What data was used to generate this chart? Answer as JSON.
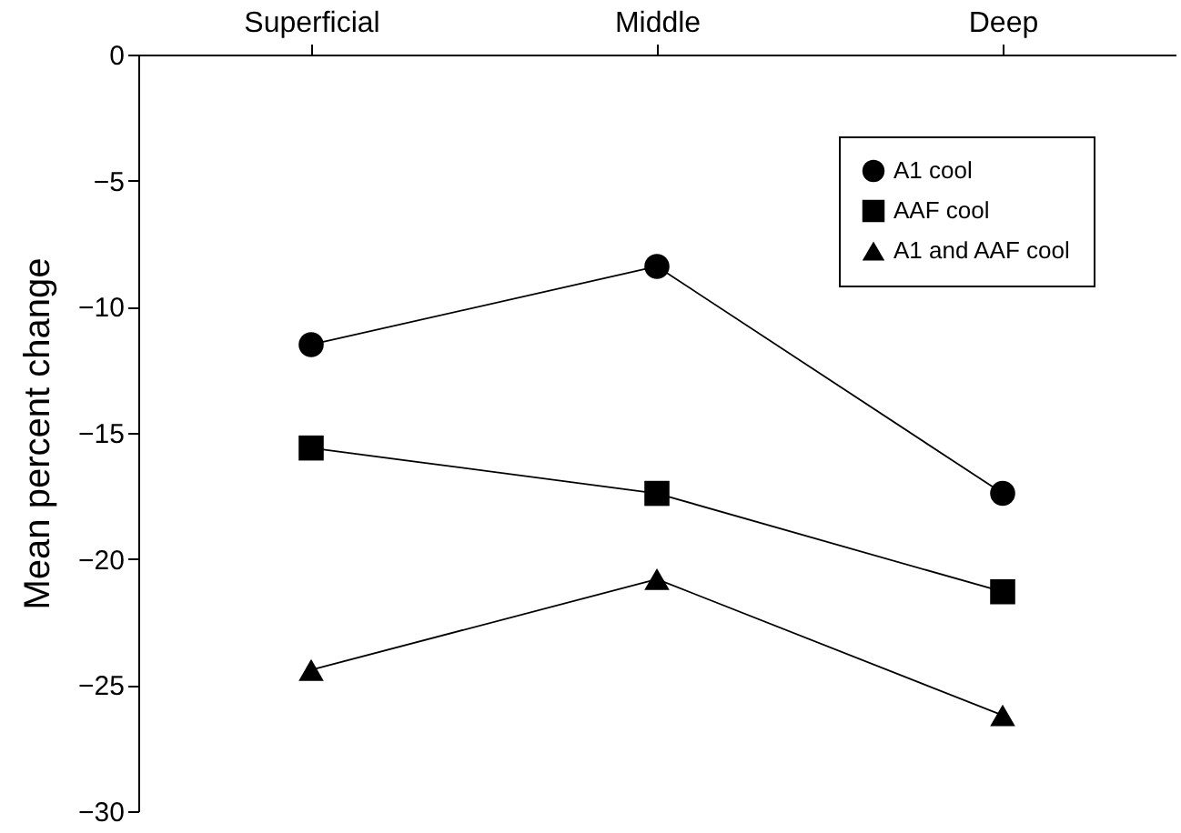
{
  "chart_data": {
    "type": "line",
    "ylabel": "Mean percent change",
    "categories": [
      "Superficial",
      "Middle",
      "Deep"
    ],
    "ylim": [
      -30,
      0
    ],
    "yticks": [
      -30,
      -25,
      -20,
      -15,
      -10,
      -5,
      0
    ],
    "grid": false,
    "legend": "top right",
    "series": [
      {
        "name": "A1 cool",
        "color": "#000000",
        "marker": "circle",
        "values": [
          -11.5,
          -8.4,
          -17.4
        ]
      },
      {
        "name": "AAF cool",
        "color": "#000000",
        "marker": "square",
        "values": [
          -15.6,
          -17.4,
          -21.3
        ]
      },
      {
        "name": "A1 and AAF cool",
        "color": "#000000",
        "marker": "triangle",
        "values": [
          -24.4,
          -20.8,
          -26.2
        ]
      }
    ]
  }
}
